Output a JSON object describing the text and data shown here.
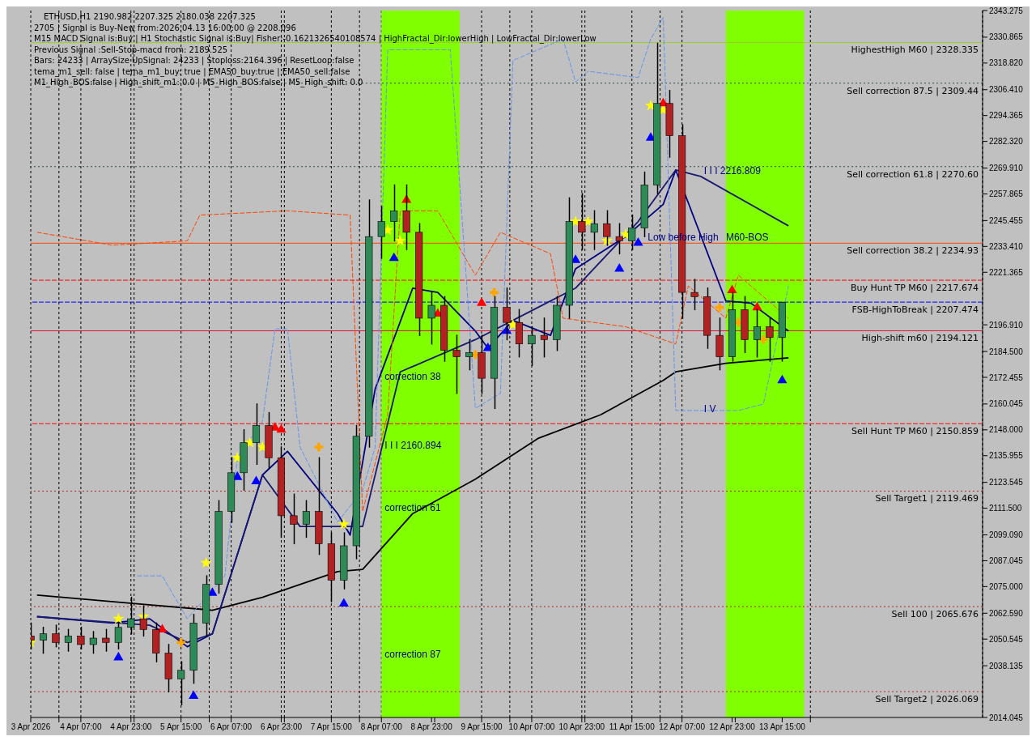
{
  "chart_data": {
    "type": "candlestick",
    "title": "ETHUSD,H1  2190.982 2207.325 2180.038 2207.325",
    "x": [
      "2026-04-03T15:00",
      "2026-04-03T19:00",
      "2026-04-03T23:00",
      "2026-04-04T03:00",
      "2026-04-04T07:00",
      "2026-04-04T11:00",
      "2026-04-04T15:00",
      "2026-04-04T19:00",
      "2026-04-04T23:00",
      "2026-04-05T03:00",
      "2026-04-05T07:00",
      "2026-04-05T11:00",
      "2026-04-05T15:00",
      "2026-04-05T19:00",
      "2026-04-05T23:00",
      "2026-04-06T03:00",
      "2026-04-06T07:00",
      "2026-04-06T11:00",
      "2026-04-06T15:00",
      "2026-04-06T19:00",
      "2026-04-06T23:00",
      "2026-04-07T03:00",
      "2026-04-07T07:00",
      "2026-04-07T11:00",
      "2026-04-07T15:00",
      "2026-04-07T19:00",
      "2026-04-07T23:00",
      "2026-04-08T03:00",
      "2026-04-08T07:00",
      "2026-04-08T11:00",
      "2026-04-08T15:00",
      "2026-04-08T19:00",
      "2026-04-08T23:00",
      "2026-04-09T03:00",
      "2026-04-09T07:00",
      "2026-04-09T11:00",
      "2026-04-09T15:00",
      "2026-04-09T19:00",
      "2026-04-09T23:00",
      "2026-04-10T03:00",
      "2026-04-10T07:00",
      "2026-04-10T11:00",
      "2026-04-10T15:00",
      "2026-04-10T19:00",
      "2026-04-10T23:00",
      "2026-04-11T03:00",
      "2026-04-11T07:00",
      "2026-04-11T11:00",
      "2026-04-11T15:00",
      "2026-04-11T19:00",
      "2026-04-11T23:00",
      "2026-04-12T03:00",
      "2026-04-12T07:00",
      "2026-04-12T11:00",
      "2026-04-12T15:00",
      "2026-04-12T19:00",
      "2026-04-12T23:00",
      "2026-04-13T03:00",
      "2026-04-13T07:00",
      "2026-04-13T11:00",
      "2026-04-13T15:00"
    ],
    "ohlc": [
      [
        2052,
        2058,
        2046,
        2050
      ],
      [
        2050,
        2056,
        2044,
        2053
      ],
      [
        2053,
        2057,
        2047,
        2049
      ],
      [
        2049,
        2055,
        2045,
        2052
      ],
      [
        2052,
        2056,
        2046,
        2048
      ],
      [
        2048,
        2054,
        2044,
        2051
      ],
      [
        2051,
        2055,
        2045,
        2049
      ],
      [
        2049,
        2058,
        2046,
        2056
      ],
      [
        2056,
        2070,
        2053,
        2060
      ],
      [
        2060,
        2066,
        2052,
        2055
      ],
      [
        2055,
        2058,
        2040,
        2044
      ],
      [
        2044,
        2048,
        2026,
        2032
      ],
      [
        2032,
        2040,
        2020,
        2036
      ],
      [
        2036,
        2062,
        2030,
        2058
      ],
      [
        2058,
        2080,
        2052,
        2076
      ],
      [
        2076,
        2115,
        2072,
        2110
      ],
      [
        2110,
        2135,
        2105,
        2128
      ],
      [
        2128,
        2148,
        2120,
        2142
      ],
      [
        2142,
        2160,
        2132,
        2150
      ],
      [
        2150,
        2156,
        2130,
        2135
      ],
      [
        2135,
        2140,
        2098,
        2108
      ],
      [
        2108,
        2118,
        2095,
        2104
      ],
      [
        2104,
        2115,
        2098,
        2110
      ],
      [
        2110,
        2135,
        2090,
        2095
      ],
      [
        2095,
        2100,
        2068,
        2078
      ],
      [
        2078,
        2100,
        2074,
        2094
      ],
      [
        2094,
        2150,
        2088,
        2145
      ],
      [
        2145,
        2255,
        2140,
        2238
      ],
      [
        2238,
        2252,
        2228,
        2245
      ],
      [
        2245,
        2262,
        2236,
        2250
      ],
      [
        2250,
        2262,
        2232,
        2240
      ],
      [
        2240,
        2244,
        2192,
        2200
      ],
      [
        2200,
        2212,
        2188,
        2206
      ],
      [
        2206,
        2210,
        2180,
        2185
      ],
      [
        2185,
        2192,
        2165,
        2182
      ],
      [
        2182,
        2190,
        2176,
        2184
      ],
      [
        2184,
        2192,
        2165,
        2172
      ],
      [
        2172,
        2210,
        2158,
        2205
      ],
      [
        2205,
        2214,
        2190,
        2198
      ],
      [
        2198,
        2204,
        2182,
        2188
      ],
      [
        2188,
        2196,
        2178,
        2192
      ],
      [
        2192,
        2200,
        2182,
        2190
      ],
      [
        2190,
        2210,
        2185,
        2206
      ],
      [
        2206,
        2256,
        2200,
        2245
      ],
      [
        2245,
        2258,
        2232,
        2240
      ],
      [
        2240,
        2250,
        2232,
        2244
      ],
      [
        2244,
        2250,
        2234,
        2238
      ],
      [
        2238,
        2244,
        2230,
        2236
      ],
      [
        2236,
        2248,
        2232,
        2242
      ],
      [
        2242,
        2268,
        2238,
        2262
      ],
      [
        2262,
        2328,
        2258,
        2300
      ],
      [
        2300,
        2306,
        2275,
        2285
      ],
      [
        2285,
        2290,
        2200,
        2212
      ],
      [
        2212,
        2218,
        2204,
        2210
      ],
      [
        2210,
        2214,
        2186,
        2192
      ],
      [
        2192,
        2200,
        2176,
        2182
      ],
      [
        2182,
        2212,
        2180,
        2204
      ],
      [
        2204,
        2210,
        2184,
        2190
      ],
      [
        2190,
        2204,
        2182,
        2196
      ],
      [
        2196,
        2200,
        2180,
        2191
      ],
      [
        2190.982,
        2207.325,
        2180.038,
        2207.325
      ]
    ],
    "series": [
      {
        "type": "line",
        "color": "#000000",
        "line_style": "solid",
        "x": [
          "2026-04-03T17:00",
          "2026-04-05T01:00",
          "2026-04-06T01:00",
          "2026-04-06T17:00",
          "2026-04-07T17:00",
          "2026-04-08T01:00",
          "2026-04-08T17:00",
          "2026-04-09T13:00",
          "2026-04-10T09:00",
          "2026-04-11T05:00",
          "2026-04-12T01:00",
          "2026-04-12T05:00",
          "2026-04-12T21:00",
          "2026-04-13T17:00"
        ],
        "values": [
          2071,
          2067,
          2064,
          2070,
          2082,
          2083,
          2109,
          2125,
          2144,
          2155,
          2171,
          2175,
          2179,
          2181.5
        ]
      },
      {
        "type": "line",
        "color": "#000080",
        "line_style": "solid",
        "x": [
          "2026-04-03T17:00",
          "2026-04-04T17:00",
          "2026-04-05T05:00",
          "2026-04-05T17:00",
          "2026-04-06T01:00",
          "2026-04-06T17:00",
          "2026-04-07T01:00",
          "2026-04-07T17:00",
          "2026-04-07T21:00",
          "2026-04-08T05:00",
          "2026-04-08T17:00",
          "2026-04-09T01:00",
          "2026-04-09T13:00",
          "2026-04-09T17:00",
          "2026-04-10T01:00",
          "2026-04-10T13:00",
          "2026-04-10T21:00",
          "2026-04-11T13:00",
          "2026-04-12T01:00",
          "2026-04-12T05:00",
          "2026-04-12T21:00",
          "2026-04-13T05:00",
          "2026-04-13T17:00"
        ],
        "values": [
          2061,
          2058,
          2060,
          2047,
          2053,
          2127,
          2138,
          2109,
          2099,
          2167,
          2214,
          2212,
          2194,
          2186,
          2199,
          2192,
          2223,
          2238,
          2253,
          2269,
          2208,
          2207,
          2194
        ]
      },
      {
        "type": "line",
        "color": "#191970",
        "line_style": "solid",
        "x": [
          "2026-04-03T17:00",
          "2026-04-05T05:00",
          "2026-04-05T17:00",
          "2026-04-06T01:00",
          "2026-04-06T17:00",
          "2026-04-07T05:00",
          "2026-04-08T01:00",
          "2026-04-08T13:00",
          "2026-04-09T13:00",
          "2026-04-10T09:00",
          "2026-04-10T21:00",
          "2026-04-11T17:00",
          "2026-04-12T05:00",
          "2026-04-12T13:00",
          "2026-04-13T17:00"
        ],
        "values": [
          2061,
          2057,
          2049,
          2053,
          2127,
          2103,
          2103,
          2175,
          2190,
          2205,
          2214,
          2245,
          2269,
          2266,
          2243
        ]
      },
      {
        "type": "line",
        "color": "#ff4500",
        "line_style": "dashed",
        "x": [
          "2026-04-03T17:00",
          "2026-04-04T17:00",
          "2026-04-05T17:00",
          "2026-04-05T21:00",
          "2026-04-07T01:00",
          "2026-04-07T21:00",
          "2026-04-08T01:00",
          "2026-04-08T09:00",
          "2026-04-08T13:00",
          "2026-04-09T01:00",
          "2026-04-09T13:00",
          "2026-04-09T21:00",
          "2026-04-10T13:00",
          "2026-04-10T17:00",
          "2026-04-11T13:00",
          "2026-04-12T05:00",
          "2026-04-12T09:00",
          "2026-04-12T21:00",
          "2026-04-13T01:00",
          "2026-04-13T17:00"
        ],
        "values": [
          2240,
          2234,
          2236,
          2248,
          2250,
          2248,
          2110,
          2155,
          2250,
          2250,
          2220,
          2240,
          2230,
          2200,
          2196,
          2188,
          2215,
          2200,
          2220,
          2200
        ]
      },
      {
        "type": "line",
        "color": "#6495ed",
        "line_style": "dashed",
        "x": [
          "2026-04-05T01:00",
          "2026-04-05T09:00",
          "2026-04-05T17:00",
          "2026-04-06T05:00",
          "2026-04-06T09:00",
          "2026-04-06T17:00",
          "2026-04-06T21:00",
          "2026-04-07T01:00",
          "2026-04-07T05:00",
          "2026-04-07T17:00",
          "2026-04-08T01:00",
          "2026-04-08T05:00",
          "2026-04-08T09:00",
          "2026-04-09T05:00",
          "2026-04-09T13:00",
          "2026-04-09T21:00",
          "2026-04-10T01:00",
          "2026-04-10T17:00",
          "2026-04-10T21:00",
          "2026-04-11T01:00",
          "2026-04-11T17:00",
          "2026-04-11T21:00",
          "2026-04-12T01:00",
          "2026-04-12T05:00",
          "2026-04-13T01:00",
          "2026-04-13T09:00",
          "2026-04-13T17:00"
        ],
        "values": [
          2080,
          2080,
          2060,
          2080,
          2135,
          2152,
          2195,
          2195,
          2140,
          2105,
          2120,
          2140,
          2325,
          2325,
          2158,
          2165,
          2320,
          2330,
          2310,
          2315,
          2312,
          2330,
          2340,
          2157,
          2157,
          2160,
          2215
        ]
      },
      {
        "type": "scatter",
        "marker": "star",
        "color": "#ffff00",
        "x": [
          "2026-04-03T15:00",
          "2026-04-04T19:00",
          "2026-04-05T03:00",
          "2026-04-05T23:00",
          "2026-04-06T09:00",
          "2026-04-06T13:00",
          "2026-04-06T17:00",
          "2026-04-07T19:00",
          "2026-04-08T09:00",
          "2026-04-08T13:00",
          "2026-04-10T01:00",
          "2026-04-10T21:00",
          "2026-04-11T01:00",
          "2026-04-11T07:00",
          "2026-04-11T13:00",
          "2026-04-11T21:00",
          "2026-04-12T01:00"
        ],
        "values": [
          2049,
          2060,
          2061,
          2086,
          2135,
          2142,
          2140,
          2104,
          2241,
          2236,
          2197,
          2245,
          2245,
          2236,
          2239,
          2299,
          2297
        ]
      },
      {
        "type": "scatter",
        "marker": "triangle",
        "color": "#0000ff",
        "x": [
          "2026-04-04T19:00",
          "2026-04-05T19:00",
          "2026-04-06T01:00",
          "2026-04-06T09:00",
          "2026-04-06T15:00",
          "2026-04-07T19:00",
          "2026-04-08T11:00",
          "2026-04-09T17:00",
          "2026-04-09T23:00",
          "2026-04-10T21:00",
          "2026-04-11T11:00",
          "2026-04-11T17:00",
          "2026-04-11T21:00",
          "2026-04-13T15:00"
        ],
        "values": [
          2042,
          2024,
          2072,
          2126,
          2124,
          2067,
          2228,
          2186,
          2194,
          2227,
          2223,
          2235,
          2284,
          2171
        ]
      },
      {
        "type": "scatter",
        "marker": "triangle",
        "color": "#ff0000",
        "x": [
          "2026-04-05T09:00",
          "2026-04-06T21:00",
          "2026-04-06T23:00",
          "2026-04-08T15:00",
          "2026-04-09T01:00",
          "2026-04-09T15:00",
          "2026-04-12T01:00",
          "2026-04-12T23:00",
          "2026-04-13T07:00"
        ],
        "values": [
          2055,
          2149,
          2148,
          2255,
          2202,
          2207,
          2300,
          2213,
          2205
        ]
      },
      {
        "type": "scatter",
        "marker": "cross",
        "color": "#ffa500",
        "x": [
          "2026-04-05T15:00",
          "2026-04-07T11:00",
          "2026-04-09T13:00",
          "2026-04-09T19:00",
          "2026-04-12T19:00",
          "2026-04-13T01:00",
          "2026-04-13T09:00"
        ],
        "values": [
          2049,
          2140,
          2183,
          2212,
          2205,
          2198,
          2190
        ]
      }
    ],
    "xlim": [
      "2026-04-03T15:00",
      "2026-04-16T07:00"
    ],
    "xticks": [
      {
        "value": "2026-04-03T15:00",
        "label": "3 Apr 2026"
      },
      {
        "value": "2026-04-04T07:00",
        "label": "4 Apr 07:00"
      },
      {
        "value": "2026-04-04T23:00",
        "label": "4 Apr 23:00"
      },
      {
        "value": "2026-04-05T15:00",
        "label": "5 Apr 15:00"
      },
      {
        "value": "2026-04-06T07:00",
        "label": "6 Apr 07:00"
      },
      {
        "value": "2026-04-06T23:00",
        "label": "6 Apr 23:00"
      },
      {
        "value": "2026-04-07T15:00",
        "label": "7 Apr 15:00"
      },
      {
        "value": "2026-04-08T07:00",
        "label": "8 Apr 07:00"
      },
      {
        "value": "2026-04-08T23:00",
        "label": "8 Apr 23:00"
      },
      {
        "value": "2026-04-09T15:00",
        "label": "9 Apr 15:00"
      },
      {
        "value": "2026-04-10T07:00",
        "label": "10 Apr 07:00"
      },
      {
        "value": "2026-04-10T23:00",
        "label": "10 Apr 23:00"
      },
      {
        "value": "2026-04-11T15:00",
        "label": "11 Apr 15:00"
      },
      {
        "value": "2026-04-12T07:00",
        "label": "12 Apr 07:00"
      },
      {
        "value": "2026-04-12T23:00",
        "label": "12 Apr 23:00"
      },
      {
        "value": "2026-04-13T15:00",
        "label": "13 Apr 15:00"
      },
      {
        "value": "2026-04-04T00:00",
        "label": null
      },
      {
        "value": "2026-04-05T00:00",
        "label": null
      },
      {
        "value": "2026-04-06T00:00",
        "label": null
      },
      {
        "value": "2026-04-07T00:00",
        "label": null
      },
      {
        "value": "2026-04-08T00:00",
        "label": null
      },
      {
        "value": "2026-04-09T00:00",
        "label": null
      },
      {
        "value": "2026-04-10T00:00",
        "label": null
      },
      {
        "value": "2026-04-11T00:00",
        "label": null
      },
      {
        "value": "2026-04-12T00:00",
        "label": null
      },
      {
        "value": "2026-04-13T00:00",
        "label": null
      },
      {
        "value": "2026-04-14T00:00",
        "label": null
      }
    ],
    "ylim": [
      2014.045,
      2343.275
    ],
    "yticks": [
      2343.275,
      2330.865,
      {
        "value": 2318.82,
        "label": "2318.820"
      },
      {
        "value": 2306.41,
        "label": "2306.410"
      },
      2294.365,
      {
        "value": 2282.32,
        "label": "2282.320"
      },
      {
        "value": 2269.91,
        "label": "2269.910"
      },
      2257.865,
      2245.455,
      {
        "value": 2233.41,
        "label": "2233.410"
      },
      2221.365,
      {
        "value": 2196.91,
        "label": "2196.910"
      },
      {
        "value": 2184.5,
        "label": "2184.500"
      },
      2172.455,
      2160.045,
      {
        "value": 2148,
        "label": "2148.000"
      },
      2135.955,
      2123.545,
      {
        "value": 2111.5,
        "label": "2111.500"
      },
      {
        "value": 2099.09,
        "label": "2099.090"
      },
      2087.045,
      {
        "value": 2075,
        "label": "2075.000"
      },
      {
        "value": 2062.59,
        "label": "2062.590"
      },
      2050.545,
      2038.135,
      2014.045
    ],
    "grid": "x",
    "legend": false,
    "bands": [
      {
        "axis": "x",
        "from": "2026-04-08T07:00",
        "to": "2026-04-09T08:00",
        "color": "#80ff00"
      },
      {
        "axis": "x",
        "from": "2026-04-12T21:00",
        "to": "2026-04-13T22:00",
        "color": "#80ff00"
      }
    ],
    "ref_lines": [
      {
        "axis": "y",
        "value": 2207.474,
        "label": "FSB-HighToBreak | 2207.474",
        "color": "#0000ff",
        "line_style": "dashed"
      },
      {
        "axis": "y",
        "value": 2119.469,
        "label": "Sell Target1 | 2119.469",
        "color": "#b22222",
        "line_style": "dotted"
      },
      {
        "axis": "y",
        "value": 2065.676,
        "label": "Sell 100 | 2065.676",
        "color": "#b22222",
        "line_style": "dotted"
      },
      {
        "axis": "y",
        "value": 2026.069,
        "label": "Sell Target2 | 2026.069",
        "color": "#b22222",
        "line_style": "dotted"
      },
      {
        "axis": "y",
        "value": 2217.674,
        "label": "Buy Hunt TP M60 | 2217.674",
        "color": "#ff0000",
        "line_style": "dashed"
      },
      {
        "axis": "y",
        "value": 2150.859,
        "label": "Sell Hunt TP M60 | 2150.859",
        "color": "#ff0000",
        "line_style": "dashed"
      },
      {
        "axis": "y",
        "value": 2194.121,
        "label": "High-shift m60 | 2194.121",
        "color": "#dc143c",
        "line_style": "solid"
      },
      {
        "axis": "y",
        "value": 2328.335,
        "label": "HighestHigh   M60 | 2328.335",
        "color": "#9acd32",
        "line_style": "solid"
      },
      {
        "axis": "y",
        "value": 2309.44,
        "label": "Sell correction 87.5 | 2309.44",
        "color": "#2f4f4f",
        "line_style": "dotted"
      },
      {
        "axis": "y",
        "value": 2270.6,
        "label": "Sell correction 61.8 | 2270.60",
        "color": "#2f4f4f",
        "line_style": "dotted"
      },
      {
        "axis": "y",
        "value": 2234.93,
        "label": "Sell correction 38.2 | 2234.93",
        "color": "#ff4500",
        "line_style": "solid"
      }
    ],
    "annotations": [
      "2705 | Signal is Buy-New from:2026.04.13 16:00:00 @ 2208.096",
      "M15 MACD Signal is:Buy | H1 Stochastic Signal is:Buy| Fisher:-0.1621326540108574 | HighFractal_Dir:lowerHigh | LowFractal_Dir:lowerLow",
      "Previous Signal :Sell-Stop-macd from: 2189.525",
      "Bars: 24233 | ArraySize UpSignal: 24233 | Stoploss:2164.396 | ResetLoop:false",
      "tema_m1_sell: false | tema_m1_buy: true | EMA50_buy:true | EMA50_sell:false",
      "M1_High_BOS:false | High_shift_m1: 0.0 | M5_High_BOS:false | M5_High_shift: 0.0",
      {
        "text": "correction 38",
        "x": "2026-04-08T07:00",
        "y": 2170
      },
      {
        "text": "correction 61",
        "x": "2026-04-08T07:00",
        "y": 2109
      },
      {
        "text": "correction 87",
        "x": "2026-04-08T07:00",
        "y": 2041
      },
      {
        "text": "I I I 2160.894",
        "x": "2026-04-08T07:00",
        "y": 2138
      },
      {
        "text": "I I I 2216.809",
        "x": "2026-04-12T13:00",
        "y": 2266
      },
      {
        "text": "I V",
        "x": "2026-04-12T13:00",
        "y": 2155
      },
      {
        "text": "Low before High",
        "x": "2026-04-11T19:00",
        "y": 2235
      },
      {
        "text": "M60-BOS",
        "x": "2026-04-12T20:00",
        "y": 2235
      }
    ]
  }
}
